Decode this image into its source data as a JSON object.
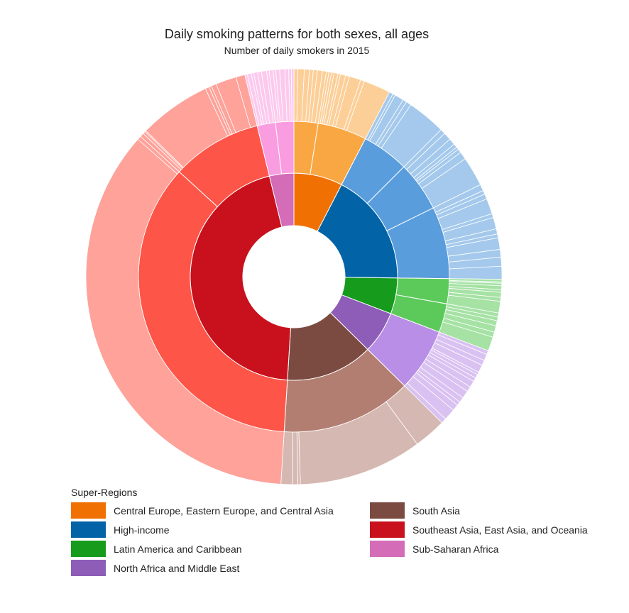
{
  "chart_data": {
    "type": "sunburst",
    "title": "Daily smoking patterns for both sexes, all ages",
    "subtitle": "Number of daily smokers in 2015",
    "legend_title": "Super-Regions",
    "legend_position": "bottom",
    "series": [
      {
        "name": "Central Europe, Eastern Europe, and Central Asia",
        "color": "#f07102",
        "value": 7.6,
        "regions": [
          {
            "color": "#f9a743",
            "value": 2.5,
            "countries": [
              0.3,
              0.5,
              0.4,
              0.3,
              0.3,
              0.4,
              0.3
            ]
          },
          {
            "color": "#f9a743",
            "value": 5.1,
            "countries": [
              0.2,
              0.2,
              0.2,
              0.3,
              0.2,
              0.4,
              0.3,
              0.9,
              0.3,
              2.1
            ]
          }
        ]
      },
      {
        "name": "High-income",
        "color": "#0264a6",
        "value": 17.6,
        "regions": [
          {
            "color": "#5a9ddd",
            "value": 4.9,
            "countries": [
              0.3,
              0.2,
              0.7,
              0.3,
              0.4,
              3.0
            ]
          },
          {
            "color": "#5a9ddd",
            "value": 5.2,
            "countries": [
              0.4,
              0.6,
              0.5,
              0.3,
              0.2,
              0.3,
              0.6,
              2.3
            ]
          },
          {
            "color": "#5a9ddd",
            "value": 7.5,
            "countries": [
              0.5,
              0.3,
              0.4,
              1.2,
              0.3,
              0.9,
              0.4,
              0.3,
              0.9,
              0.6,
              0.7,
              1.0
            ]
          }
        ]
      },
      {
        "name": "Latin America and Caribbean",
        "color": "#169b1d",
        "value": 5.6,
        "regions": [
          {
            "color": "#5bca5a",
            "value": 2.6,
            "countries": [
              0.2,
              0.1,
              0.2,
              0.3,
              0.2,
              0.4,
              0.3,
              0.9
            ]
          },
          {
            "color": "#5bca5a",
            "value": 3.0,
            "countries": [
              0.3,
              0.3,
              0.4,
              0.5,
              0.4,
              1.1
            ]
          }
        ]
      },
      {
        "name": "North Africa and Middle East",
        "color": "#8e5db8",
        "value": 6.6,
        "regions": [
          {
            "color": "#b98ee6",
            "value": 6.6,
            "countries": [
              0.3,
              0.5,
              0.4,
              0.6,
              0.2,
              0.3,
              0.3,
              0.5,
              0.4,
              0.6,
              0.4,
              0.3,
              0.5,
              0.9,
              0.4
            ]
          }
        ]
      },
      {
        "name": "South Asia",
        "color": "#7b4b41",
        "value": 13.6,
        "regions": [
          {
            "color": "#b37e72",
            "value": 13.6,
            "countries": [
              2.5,
              9.6,
              0.2,
              0.4,
              0.9
            ]
          }
        ]
      },
      {
        "name": "Southeast Asia, East Asia, and Oceania",
        "color": "#c8111c",
        "value": 45.2,
        "regions": [
          {
            "color": "#fd5548",
            "value": 35.8,
            "countries": [
              35.5,
              0.3
            ]
          },
          {
            "color": "#fd5548",
            "value": 9.4,
            "countries": [
              0.3,
              0.2,
              0.1,
              5.6,
              0.3,
              0.2,
              0.4,
              1.6,
              0.7
            ]
          }
        ]
      },
      {
        "name": "Sub-Saharan Africa",
        "color": "#d46cb7",
        "value": 3.8,
        "regions": [
          {
            "color": "#fa9ce0",
            "value": 1.9,
            "countries": [
              0.2,
              0.3,
              0.2,
              0.3,
              0.3,
              0.4,
              0.2
            ]
          },
          {
            "color": "#fa9ce0",
            "value": 1.9,
            "countries": [
              0.3,
              0.2,
              0.3,
              0.4,
              0.3,
              0.2,
              0.2
            ]
          }
        ]
      }
    ]
  }
}
